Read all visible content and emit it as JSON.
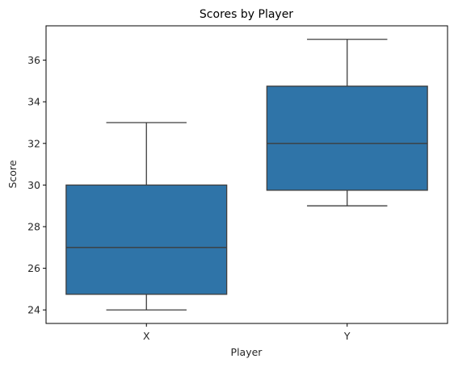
{
  "chart_data": {
    "type": "box",
    "title": "Scores by Player",
    "xlabel": "Player",
    "ylabel": "Score",
    "ylim": [
      23.35,
      37.65
    ],
    "yticks": [
      24,
      26,
      28,
      30,
      32,
      34,
      36
    ],
    "grid": false,
    "legend": "none",
    "color": "#2f74a8",
    "categories": [
      "X",
      "Y"
    ],
    "boxes": [
      {
        "category": "X",
        "whisker_low": 24,
        "q1": 24.75,
        "median": 27,
        "q3": 30,
        "whisker_high": 33
      },
      {
        "category": "Y",
        "whisker_low": 29,
        "q1": 29.75,
        "median": 32,
        "q3": 34.75,
        "whisker_high": 37
      }
    ]
  }
}
